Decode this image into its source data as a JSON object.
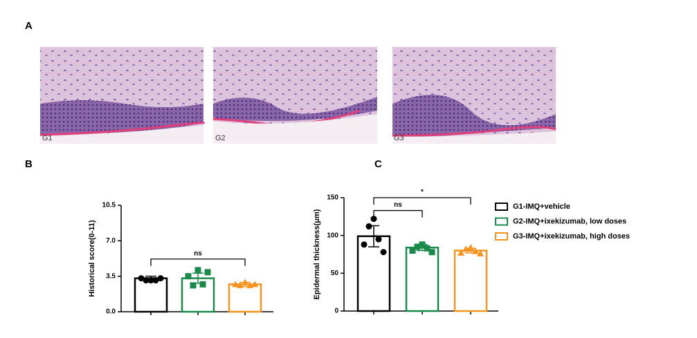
{
  "panel_labels": [
    "A",
    "B",
    "C"
  ],
  "images": [
    {
      "label": "G1"
    },
    {
      "label": "G2"
    },
    {
      "label": "G3"
    }
  ],
  "chart_data": [
    {
      "type": "bar",
      "y_label": "Historical score(0-11)",
      "ylim": [
        0,
        10.5
      ],
      "yticks": [
        {
          "value": 0,
          "label": "0.0"
        },
        3.5,
        {
          "value": 7,
          "label": "7.0"
        },
        10.5
      ],
      "series": [
        {
          "color": "#000000",
          "marker": "circle",
          "values": [
            3.3
          ],
          "errors": [
            0.2
          ],
          "points": [
            3.3,
            3.1,
            3.1,
            3.1,
            3.3
          ]
        },
        {
          "color": "#1a8a4a",
          "marker": "square",
          "values": [
            3.3
          ],
          "errors": [
            0.5
          ],
          "points": [
            3.5,
            2.6,
            4.1,
            2.7,
            3.9
          ]
        },
        {
          "color": "#f5921e",
          "marker": "triangle",
          "values": [
            2.7
          ],
          "errors": [
            0.2
          ],
          "points": [
            2.7,
            2.6,
            2.9,
            2.6,
            2.7
          ]
        }
      ],
      "brackets": [
        {
          "from": 0,
          "to": 2,
          "level": 5.2,
          "label": "ns"
        }
      ]
    },
    {
      "type": "bar",
      "y_label": "Epidermal thickness(μm)",
      "ylim": [
        0,
        150
      ],
      "yticks": [
        0,
        50,
        100,
        150
      ],
      "series": [
        {
          "name": "G1-IMQ+vehicle",
          "color": "#000000",
          "marker": "circle",
          "values": [
            99
          ],
          "errors": [
            14
          ],
          "points": [
            88,
            112,
            122,
            95,
            78
          ]
        },
        {
          "name": "G2-IMQ+ixekizumab, low doses",
          "color": "#1a8a4a",
          "marker": "square",
          "values": [
            84
          ],
          "errors": [
            4
          ],
          "points": [
            80,
            85,
            88,
            83,
            78
          ]
        },
        {
          "name": "G3-IMQ+ixekizumab, high doses",
          "color": "#f5921e",
          "marker": "triangle",
          "values": [
            80
          ],
          "errors": [
            3
          ],
          "points": [
            77,
            82,
            84,
            79,
            76
          ]
        }
      ],
      "brackets": [
        {
          "from": 0,
          "to": 1,
          "level": 133,
          "label": "ns"
        },
        {
          "from": 0,
          "to": 2,
          "level": 150,
          "label": "*"
        }
      ]
    }
  ]
}
